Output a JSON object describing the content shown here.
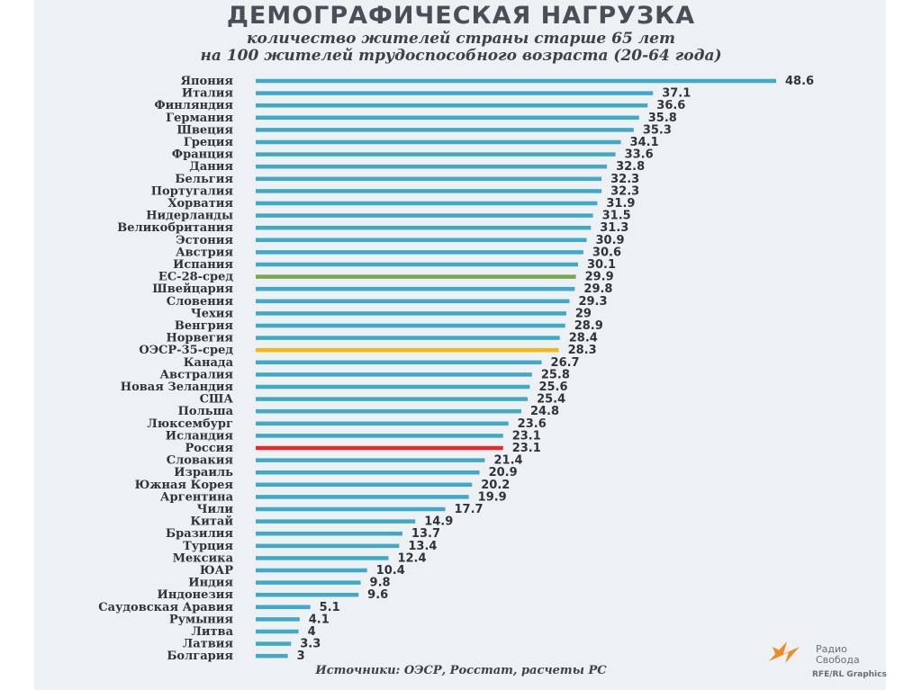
{
  "header": {
    "title": "ДЕМОГРАФИЧЕСКАЯ НАГРУЗКА",
    "subtitle_line1": "количество жителей страны старше 65 лет",
    "subtitle_line2": "на 100 жителей трудоспособного возраста (20-64 года)"
  },
  "footer": {
    "source": "Источники: ОЭСР, Росстат, расчеты РС",
    "logo_text_line1": "Радио",
    "logo_text_line2": "Свобода",
    "credit": "RFE/RL Graphics"
  },
  "colors": {
    "default_bar": "#41a9c8",
    "eu_avg": "#76a84c",
    "oecd_avg": "#f2b818",
    "russia": "#e42a2a",
    "logo": "#f08a24"
  },
  "chart_data": {
    "type": "bar",
    "orientation": "horizontal",
    "title": "ДЕМОГРАФИЧЕСКАЯ НАГРУЗКА",
    "subtitle": "количество жителей страны старше 65 лет на 100 жителей трудоспособного возраста (20-64 года)",
    "categories": [
      "Япония",
      "Италия",
      "Финляндия",
      "Германия",
      "Швеция",
      "Греция",
      "Франция",
      "Дания",
      "Бельгия",
      "Португалия",
      "Хорватия",
      "Нидерланды",
      "Великобритания",
      "Эстония",
      "Австрия",
      "Испания",
      "ЕС-28-сред",
      "Швейцария",
      "Словения",
      "Чехия",
      "Венгрия",
      "Норвегия",
      "ОЭСР-35-сред",
      "Канада",
      "Австралия",
      "Новая Зеландия",
      "США",
      "Польша",
      "Люксембург",
      "Исландия",
      "Россия",
      "Словакия",
      "Израиль",
      "Южная Корея",
      "Аргентина",
      "Чили",
      "Китай",
      "Бразилия",
      "Турция",
      "Мексика",
      "ЮАР",
      "Индия",
      "Индонезия",
      "Саудовская Аравия",
      "Румыния",
      "Литва",
      "Латвия",
      "Болгария"
    ],
    "values": [
      48.6,
      37.1,
      36.6,
      35.8,
      35.3,
      34.1,
      33.6,
      32.8,
      32.3,
      32.3,
      31.9,
      31.5,
      31.3,
      30.9,
      30.6,
      30.1,
      29.9,
      29.8,
      29.3,
      29,
      28.9,
      28.4,
      28.3,
      26.7,
      25.8,
      25.6,
      25.4,
      24.8,
      23.6,
      23.1,
      23.1,
      21.4,
      20.9,
      20.2,
      19.9,
      17.7,
      14.9,
      13.7,
      13.4,
      12.4,
      10.4,
      9.8,
      9.6,
      5.1,
      4.1,
      4,
      3.3,
      3
    ],
    "value_labels": [
      "48.6",
      "37.1",
      "36.6",
      "35.8",
      "35.3",
      "34.1",
      "33.6",
      "32.8",
      "32.3",
      "32.3",
      "31.9",
      "31.5",
      "31.3",
      "30.9",
      "30.6",
      "30.1",
      "29.9",
      "29.8",
      "29.3",
      "29",
      "28.9",
      "28.4",
      "28.3",
      "26.7",
      "25.8",
      "25.6",
      "25.4",
      "24.8",
      "23.6",
      "23.1",
      "23.1",
      "21.4",
      "20.9",
      "20.2",
      "19.9",
      "17.7",
      "14.9",
      "13.7",
      "13.4",
      "12.4",
      "10.4",
      "9.8",
      "9.6",
      "5.1",
      "4.1",
      "4",
      "3.3",
      "3"
    ],
    "highlights": {
      "ЕС-28-сред": "eu_avg",
      "ОЭСР-35-сред": "oecd_avg",
      "Россия": "russia"
    },
    "xlim": [
      0,
      48.6
    ],
    "grid": false,
    "legend": "none"
  }
}
